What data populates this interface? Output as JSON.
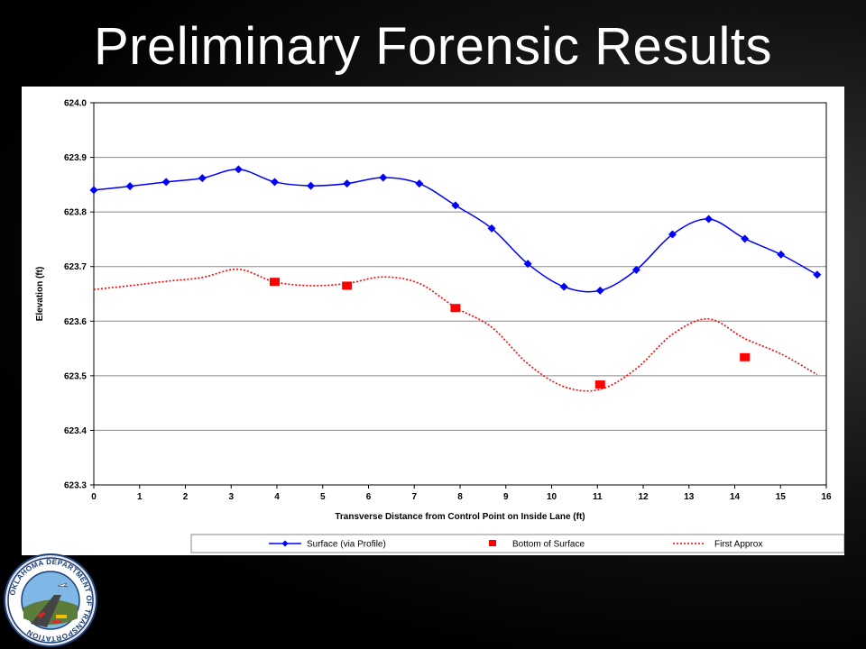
{
  "slide": {
    "title": "Preliminary Forensic Results"
  },
  "logo": {
    "text": "OKLAHOMA DEPARTMENT OF TRANSPORTATION"
  },
  "chart_data": {
    "type": "line",
    "xlabel": "Transverse Distance from Control Point on Inside Lane (ft)",
    "ylabel": "Elevation (ft)",
    "xlim": [
      0,
      16
    ],
    "ylim": [
      623.3,
      624.0
    ],
    "xticks": [
      0,
      1,
      2,
      3,
      4,
      5,
      6,
      7,
      8,
      9,
      10,
      11,
      12,
      13,
      14,
      15,
      16
    ],
    "yticks": [
      623.3,
      623.4,
      623.5,
      623.6,
      623.7,
      623.8,
      623.9,
      624.0
    ],
    "grid": "horizontal",
    "legend": "bottom",
    "series": [
      {
        "name": "Surface (via Profile)",
        "style": "line-diamond",
        "color": "#0000ff",
        "x": [
          0,
          0.79,
          1.58,
          2.37,
          3.16,
          3.95,
          4.74,
          5.53,
          6.32,
          7.11,
          7.9,
          8.69,
          9.48,
          10.27,
          11.06,
          11.85,
          12.64,
          13.43,
          14.22,
          15.01,
          15.8
        ],
        "y": [
          623.84,
          623.847,
          623.855,
          623.862,
          623.878,
          623.855,
          623.848,
          623.852,
          623.863,
          623.852,
          623.812,
          623.77,
          623.705,
          623.663,
          623.656,
          623.694,
          623.759,
          623.787,
          623.751,
          623.722,
          623.685
        ]
      },
      {
        "name": "Bottom of Surface",
        "style": "marker-square",
        "color": "#ff0000",
        "x": [
          3.95,
          5.53,
          7.9,
          11.06,
          14.22
        ],
        "y": [
          623.672,
          623.665,
          623.624,
          623.484,
          623.534
        ]
      },
      {
        "name": "First Approx",
        "style": "dotted",
        "color": "#ff0000",
        "x": [
          0,
          0.79,
          1.58,
          2.37,
          3.16,
          3.95,
          4.74,
          5.53,
          6.32,
          7.11,
          7.9,
          8.69,
          9.48,
          10.27,
          11.06,
          11.85,
          12.64,
          13.43,
          14.22,
          15.01,
          15.8
        ],
        "y": [
          623.658,
          623.665,
          623.673,
          623.68,
          623.695,
          623.672,
          623.665,
          623.669,
          623.681,
          623.669,
          623.625,
          623.589,
          623.522,
          623.48,
          623.475,
          623.513,
          623.576,
          623.604,
          623.568,
          623.54,
          623.502
        ]
      }
    ]
  }
}
